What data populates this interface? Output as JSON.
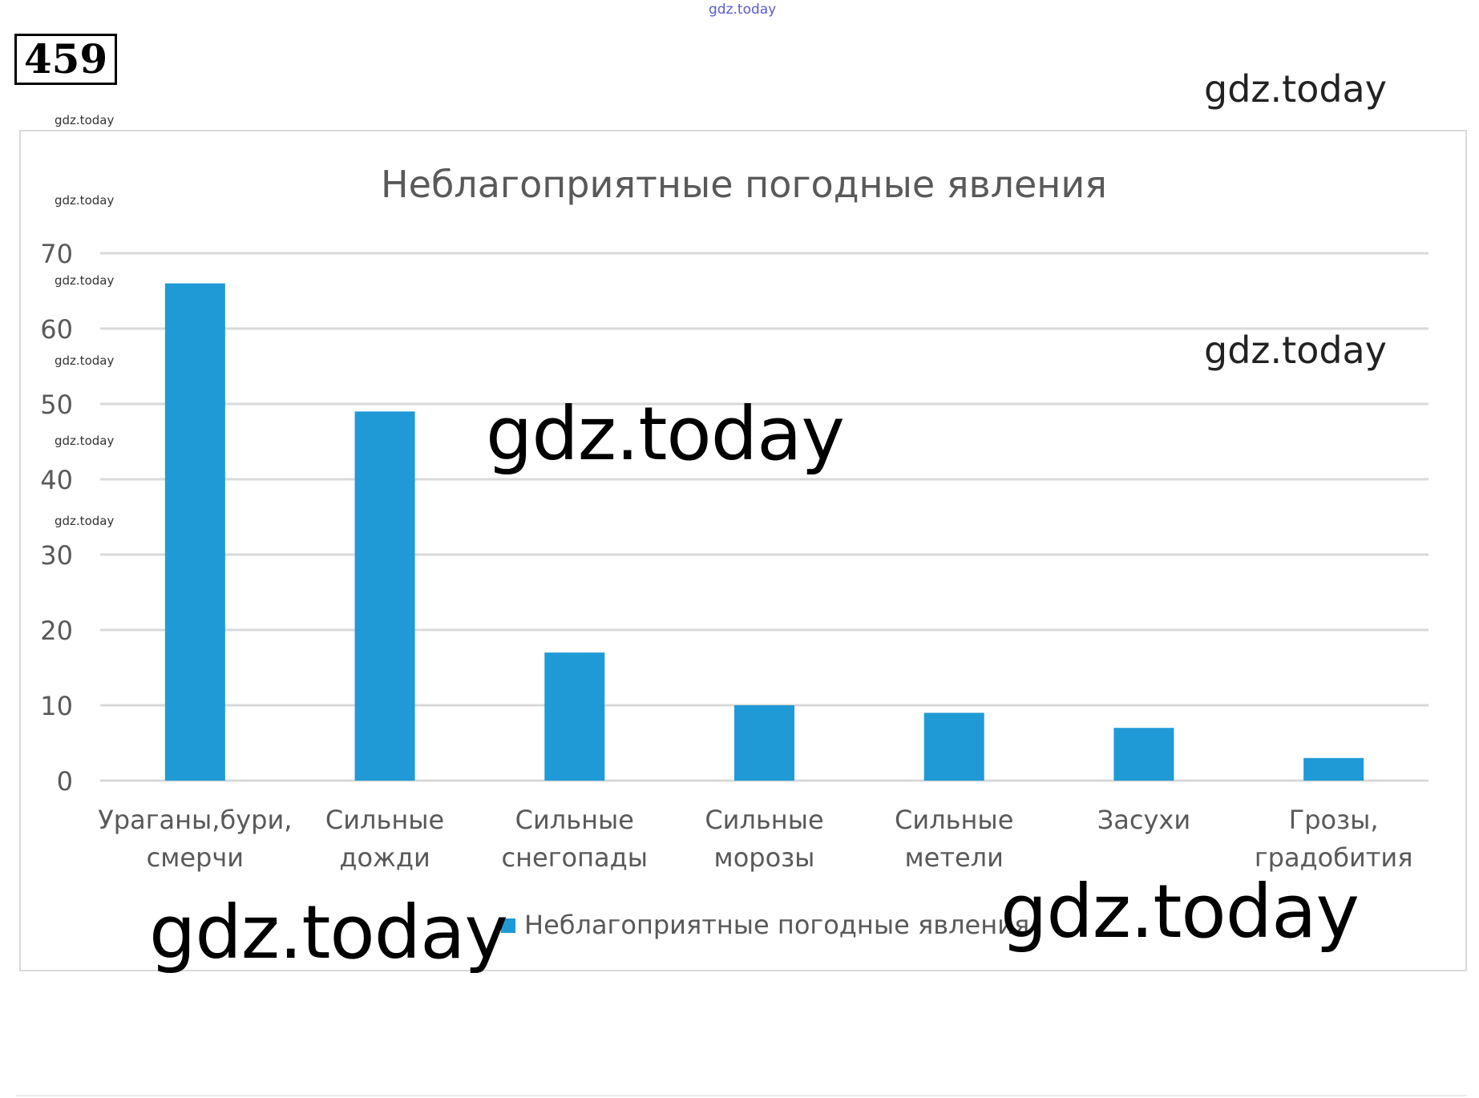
{
  "page": {
    "problem_number": "459",
    "watermark": "gdz.today"
  },
  "chart_data": {
    "type": "bar",
    "title": "Неблагоприятные погодные явления",
    "categories": [
      [
        "Ураганы,бури,",
        "смерчи"
      ],
      [
        "Сильные",
        "дожди"
      ],
      [
        "Сильные",
        "снегопады"
      ],
      [
        "Сильные",
        "морозы"
      ],
      [
        "Сильные",
        "метели"
      ],
      [
        "Засухи"
      ],
      [
        "Грозы,",
        "градобития"
      ]
    ],
    "series": [
      {
        "name": "Неблагоприятные погодные явления",
        "values": [
          66,
          49,
          17,
          10,
          9,
          7,
          3
        ],
        "color": "#1f9ad6"
      }
    ],
    "ylim": [
      0,
      70
    ],
    "yticks": [
      0,
      10,
      20,
      30,
      40,
      50,
      60,
      70
    ],
    "grid": true,
    "legend": "bottom",
    "xlabel": "",
    "ylabel": ""
  }
}
